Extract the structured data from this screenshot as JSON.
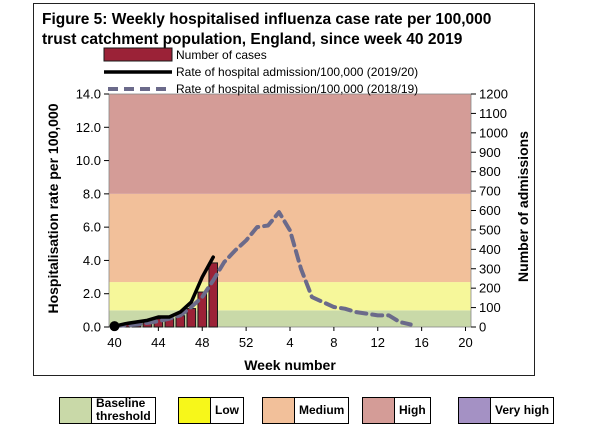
{
  "chart_data": {
    "type": "bar+line",
    "title": "Figure 5: Weekly hospitalised influenza case rate per 100,000 trust catchment population, England, since week 40 2019",
    "title_lines": [
      "Figure 5: Weekly hospitalised influenza case rate per 100,000",
      "trust catchment population, England, since week 40 2019"
    ],
    "xlabel": "Week number",
    "ylabel_left": "Hospitalisation rate per 100,000",
    "ylabel_right": "Number of admissions",
    "ylim_left": [
      0,
      14
    ],
    "ylim_right": [
      0,
      1200
    ],
    "x_ticks": [
      "40",
      "44",
      "48",
      "52",
      "4",
      "8",
      "12",
      "16",
      "20"
    ],
    "y_left_ticks": [
      "0.0",
      "2.0",
      "4.0",
      "6.0",
      "8.0",
      "10.0",
      "12.0",
      "14.0"
    ],
    "y_right_ticks": [
      "0",
      "100",
      "200",
      "300",
      "400",
      "500",
      "600",
      "700",
      "800",
      "900",
      "1000",
      "1100",
      "1200"
    ],
    "weeks": [
      40,
      41,
      42,
      43,
      44,
      45,
      46,
      47,
      48,
      49,
      50,
      51,
      52,
      1,
      2,
      3,
      4,
      5,
      6,
      7,
      8,
      9,
      10,
      11,
      12,
      13,
      14,
      15,
      16,
      17,
      18,
      19,
      20
    ],
    "series": [
      {
        "name": "Number of cases",
        "kind": "bar",
        "axis": "right",
        "values": [
          6,
          12,
          18,
          22,
          42,
          42,
          58,
          95,
          180,
          330
        ]
      },
      {
        "name": "Rate of hospital admission/100,000 (2019/20)",
        "kind": "line",
        "axis": "left",
        "values": [
          0.05,
          0.2,
          0.3,
          0.4,
          0.6,
          0.6,
          0.9,
          1.5,
          3.0,
          4.2
        ]
      },
      {
        "name": "Rate of hospital admission/100,000 (2018/19)",
        "kind": "dashed-line",
        "axis": "left",
        "values": [
          0.05,
          0.1,
          0.15,
          0.25,
          0.35,
          0.5,
          0.7,
          1.2,
          1.8,
          2.8,
          3.9,
          4.6,
          5.2,
          6.0,
          6.1,
          6.9,
          5.8,
          3.5,
          1.8,
          1.5,
          1.2,
          1.1,
          0.9,
          0.8,
          0.7,
          0.7,
          0.3,
          0.15
        ]
      }
    ],
    "thresholds": [
      {
        "name": "Baseline threshold",
        "from": 0.0,
        "to": 1.0,
        "color": "#c9d9a8"
      },
      {
        "name": "Low",
        "from": 1.0,
        "to": 2.7,
        "color": "#f6f79a"
      },
      {
        "name": "Medium",
        "from": 2.7,
        "to": 8.0,
        "color": "#f2c09a"
      },
      {
        "name": "High",
        "from": 8.0,
        "to": 14.0,
        "color": "#d49c97"
      }
    ],
    "band_legend": [
      {
        "label_lines": [
          "Baseline",
          "threshold"
        ],
        "color": "#c9d9a8"
      },
      {
        "label_lines": [
          "Low"
        ],
        "color": "#f7f71a"
      },
      {
        "label_lines": [
          "Medium"
        ],
        "color": "#f2c09a"
      },
      {
        "label_lines": [
          "High"
        ],
        "color": "#d49c97"
      },
      {
        "label_lines": [
          "Very high"
        ],
        "color": "#a491c4"
      }
    ],
    "colors": {
      "bars": "#9b2237",
      "line_2019": "#000000",
      "line_2018": "#6b6a8a"
    }
  }
}
